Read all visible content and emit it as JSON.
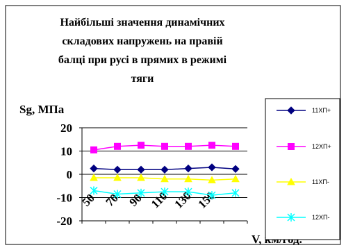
{
  "chart_data": {
    "type": "line",
    "title_lines": [
      "Найбільші значення динамічних",
      "складових напружень на правій",
      "балці  при русі в прямих в режимі",
      "тяги"
    ],
    "ylabel": "Sg, МПа",
    "xlabel": "V, км/год.",
    "x_tick_labels": [
      "50",
      "70",
      "90",
      "110",
      "130",
      "150"
    ],
    "x": [
      1,
      2,
      3,
      4,
      5,
      6,
      7
    ],
    "y_ticks": [
      20,
      10,
      0,
      -10,
      -20
    ],
    "y_tick_labels": [
      "20",
      "10",
      "0",
      "-10",
      "-20"
    ],
    "ylim": [
      -20,
      20
    ],
    "grid": "horizontal",
    "legend_position": "right",
    "series": [
      {
        "name": "11ХП+",
        "color": "#000080",
        "marker": "diamond",
        "values": [
          2.5,
          2,
          2,
          2,
          2.5,
          3,
          2.3
        ]
      },
      {
        "name": "12ХП+",
        "color": "#ff00ff",
        "marker": "square",
        "values": [
          10.5,
          12,
          12.5,
          12,
          12,
          12.5,
          12
        ]
      },
      {
        "name": "11ХП-",
        "color": "#ffff00",
        "marker": "triangle",
        "values": [
          -1.5,
          -1.5,
          -1.5,
          -2,
          -2,
          -2.5,
          -2
        ]
      },
      {
        "name": "12ХП-",
        "color": "#00ffff",
        "marker": "star",
        "values": [
          -7,
          -8.5,
          -8,
          -7.5,
          -7.5,
          -9,
          -8
        ]
      }
    ]
  }
}
